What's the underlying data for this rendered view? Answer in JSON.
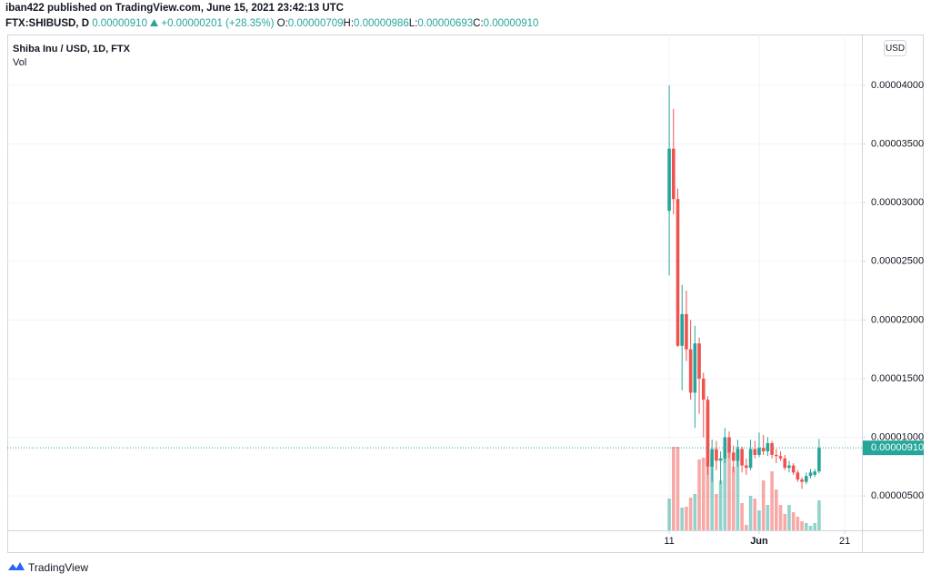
{
  "publisher": "iban422 published on TradingView.com, June 15, 2021 23:42:13 UTC",
  "brand": "TradingView",
  "chart_data": {
    "type": "candlestick",
    "title": "Shiba Inu / USD, 1D, FTX",
    "volume_label": "Vol",
    "symbol": "FTX:SHIBUSD, D",
    "last_price": {
      "value": 9.1e-06,
      "label": "0.00000910"
    },
    "change": "+0.00000201 (+28.35%)",
    "stats": [
      {
        "key": "O:",
        "value": "0.00000709"
      },
      {
        "key": "H:",
        "value": "0.00000986"
      },
      {
        "key": "L:",
        "value": "0.00000693"
      },
      {
        "key": "C:",
        "value": "0.00000910"
      }
    ],
    "currency": "USD",
    "up_color": "#26a69a",
    "down_color": "#ef5350",
    "open": [
      2.93e-05,
      3.46e-05,
      3.03e-05,
      1.78e-05,
      2.05e-05,
      1.75e-05,
      1.38e-05,
      1.8e-05,
      1.5e-05,
      1.32e-05,
      7.5e-06,
      9e-06,
      8e-06,
      8.2e-06,
      1e-05,
      8.7e-06,
      8e-06,
      9e-06,
      7.6e-06,
      7.4e-06,
      9e-06,
      8.5e-06,
      9.1e-06,
      8.8e-06,
      9.5e-06,
      8.5e-06,
      8.4e-06,
      8.2e-06,
      7.4e-06,
      7.6e-06,
      7e-06,
      6.4e-06,
      6.2e-06,
      6.7e-06,
      6.8e-06,
      7.09e-06
    ],
    "high": [
      4e-05,
      3.8e-05,
      3.12e-05,
      2.3e-05,
      2.25e-05,
      2e-05,
      1.95e-05,
      1.85e-05,
      1.55e-05,
      1.35e-05,
      9.8e-06,
      9.7e-06,
      8.8e-06,
      1.08e-05,
      1.05e-05,
      9.3e-06,
      9.8e-06,
      9.2e-06,
      8.2e-06,
      9.8e-06,
      9.7e-06,
      1.04e-05,
      1.02e-05,
      1e-05,
      9.7e-06,
      9e-06,
      8.8e-06,
      8.5e-06,
      8e-06,
      7.8e-06,
      7.2e-06,
      6.6e-06,
      7e-06,
      7.3e-06,
      7.3e-06,
      9.86e-06
    ],
    "low": [
      2.38e-05,
      2.9e-05,
      1.77e-05,
      1.4e-05,
      1.65e-05,
      1.32e-05,
      1.08e-05,
      1.2e-05,
      1e-05,
      6.8e-06,
      6.2e-06,
      7.2e-06,
      6e-06,
      7.8e-06,
      8.2e-06,
      7e-06,
      7.5e-06,
      7e-06,
      6.8e-06,
      7.2e-06,
      8.2e-06,
      8.3e-06,
      8.5e-06,
      8.4e-06,
      8.2e-06,
      7.8e-06,
      8e-06,
      7.2e-06,
      7e-06,
      6.8e-06,
      6.2e-06,
      5.6e-06,
      6e-06,
      6.5e-06,
      6.6e-06,
      6.93e-06
    ],
    "close": [
      3.46e-05,
      3.03e-05,
      1.78e-05,
      2.05e-05,
      1.75e-05,
      1.38e-05,
      1.8e-05,
      1.5e-05,
      1.32e-05,
      7.5e-06,
      9e-06,
      8e-06,
      8.2e-06,
      1e-05,
      8.7e-06,
      8e-06,
      9e-06,
      7.6e-06,
      7.4e-06,
      9e-06,
      8.5e-06,
      9.1e-06,
      8.8e-06,
      9.5e-06,
      8.5e-06,
      8.4e-06,
      8.2e-06,
      7.4e-06,
      7.6e-06,
      7e-06,
      6.4e-06,
      6.2e-06,
      6.7e-06,
      7e-06,
      7.09e-06,
      9.1e-06
    ],
    "volume": [
      35,
      92,
      92,
      25,
      26,
      36,
      40,
      78,
      80,
      136,
      85,
      40,
      55,
      100,
      95,
      70,
      92,
      30,
      6,
      38,
      35,
      22,
      55,
      28,
      65,
      45,
      28,
      18,
      28,
      20,
      15,
      10,
      8,
      5,
      8,
      33
    ],
    "volume_ylim": [
      0,
      546
    ],
    "xlim": [
      -154.6,
      45
    ],
    "xticks": [
      {
        "value": 0,
        "label": "11"
      },
      {
        "value": 21,
        "label": "Jun"
      },
      {
        "value": 41,
        "label": "21"
      }
    ],
    "ylim": [
      2.07e-06,
      4.433e-05
    ],
    "yticks": [
      {
        "value": 5e-06,
        "label": "0.00000500"
      },
      {
        "value": 1e-05,
        "label": "0.00001000"
      },
      {
        "value": 1.5e-05,
        "label": "0.00001500"
      },
      {
        "value": 2e-05,
        "label": "0.00002000"
      },
      {
        "value": 2.5e-05,
        "label": "0.00002500"
      },
      {
        "value": 3e-05,
        "label": "0.00003000"
      },
      {
        "value": 3.5e-05,
        "label": "0.00003500"
      },
      {
        "value": 4e-05,
        "label": "0.00004000"
      }
    ],
    "grid": true
  }
}
